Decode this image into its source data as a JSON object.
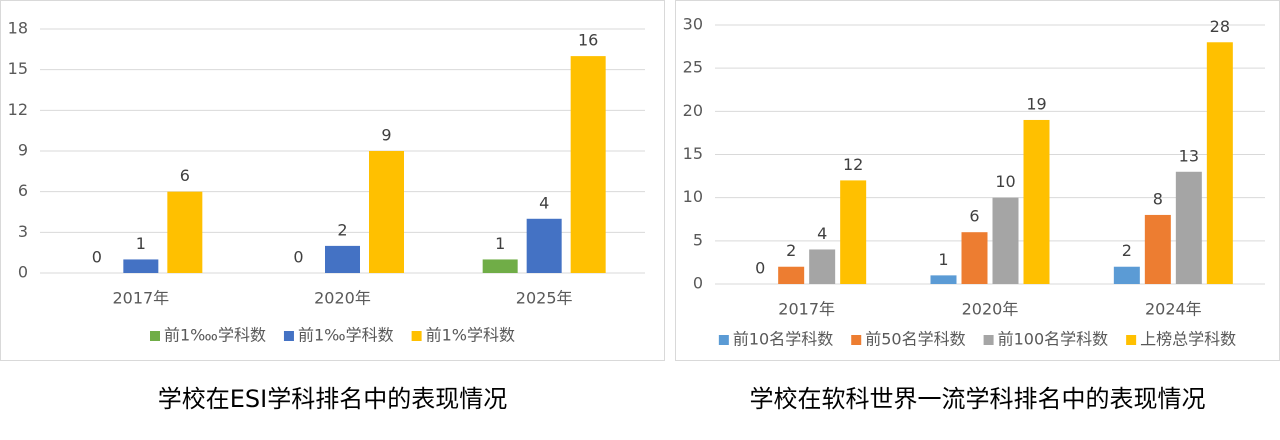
{
  "chart_data": [
    {
      "type": "bar",
      "title": "学校在ESI学科排名中的表现情况",
      "categories": [
        "2017年",
        "2020年",
        "2025年"
      ],
      "series": [
        {
          "name": "前1‱学科数",
          "color": "#70ad47",
          "values": [
            0,
            0,
            1
          ]
        },
        {
          "name": "前1‰学科数",
          "color": "#4472c4",
          "values": [
            1,
            2,
            4
          ]
        },
        {
          "name": "前1%学科数",
          "color": "#ffc000",
          "values": [
            6,
            9,
            16
          ]
        }
      ],
      "ylim": [
        0,
        18
      ],
      "yticks": [
        0,
        3,
        6,
        9,
        12,
        15,
        18
      ],
      "grid": true,
      "legend": "bottom"
    },
    {
      "type": "bar",
      "title": "学校在软科世界一流学科排名中的表现情况",
      "categories": [
        "2017年",
        "2020年",
        "2024年"
      ],
      "series": [
        {
          "name": "前10名学科数",
          "color": "#5b9bd5",
          "values": [
            0,
            1,
            2
          ]
        },
        {
          "name": "前50名学科数",
          "color": "#ed7d31",
          "values": [
            2,
            6,
            8
          ]
        },
        {
          "name": "前100名学科数",
          "color": "#a5a5a5",
          "values": [
            4,
            10,
            13
          ]
        },
        {
          "name": "上榜总学科数",
          "color": "#ffc000",
          "values": [
            12,
            19,
            28
          ]
        }
      ],
      "ylim": [
        0,
        30
      ],
      "yticks": [
        0,
        5,
        10,
        15,
        20,
        25,
        30
      ],
      "grid": true,
      "legend": "bottom"
    }
  ]
}
